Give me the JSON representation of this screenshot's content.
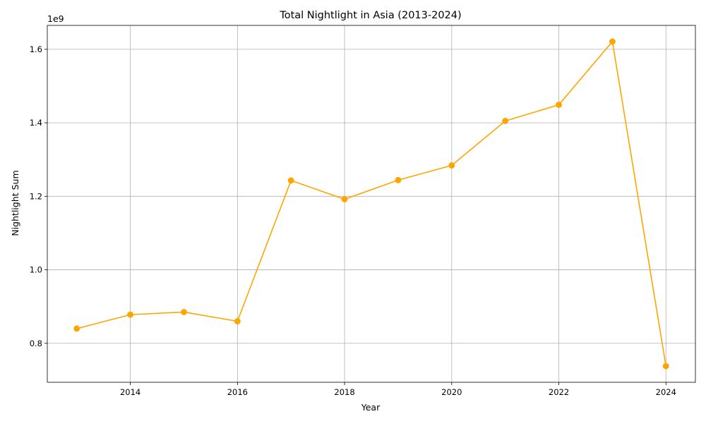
{
  "chart_data": {
    "type": "line",
    "title": "Total Nightlight in Asia (2013-2024)",
    "xlabel": "Year",
    "ylabel": "Nightlight Sum",
    "y_offset_label": "1e9",
    "x": [
      2013,
      2014,
      2015,
      2016,
      2017,
      2018,
      2019,
      2020,
      2021,
      2022,
      2023,
      2024
    ],
    "series": [
      {
        "values": [
          840000000.0,
          878000000.0,
          885000000.0,
          860000000.0,
          1243000000.0,
          1192000000.0,
          1244000000.0,
          1284000000.0,
          1405000000.0,
          1449000000.0,
          1621000000.0,
          738000000.0
        ],
        "color": "#ffa500",
        "marker": "circle"
      }
    ],
    "xlim": [
      2012.45,
      2024.55
    ],
    "ylim": [
      694000000.0,
      1665000000.0
    ],
    "xticks": [
      2014,
      2016,
      2018,
      2020,
      2022,
      2024
    ],
    "xtick_labels": [
      "2014",
      "2016",
      "2018",
      "2020",
      "2022",
      "2024"
    ],
    "yticks": [
      800000000.0,
      1000000000.0,
      1200000000.0,
      1400000000.0,
      1600000000.0
    ],
    "ytick_labels": [
      "0.8",
      "1.0",
      "1.2",
      "1.4",
      "1.6"
    ],
    "grid": true
  }
}
